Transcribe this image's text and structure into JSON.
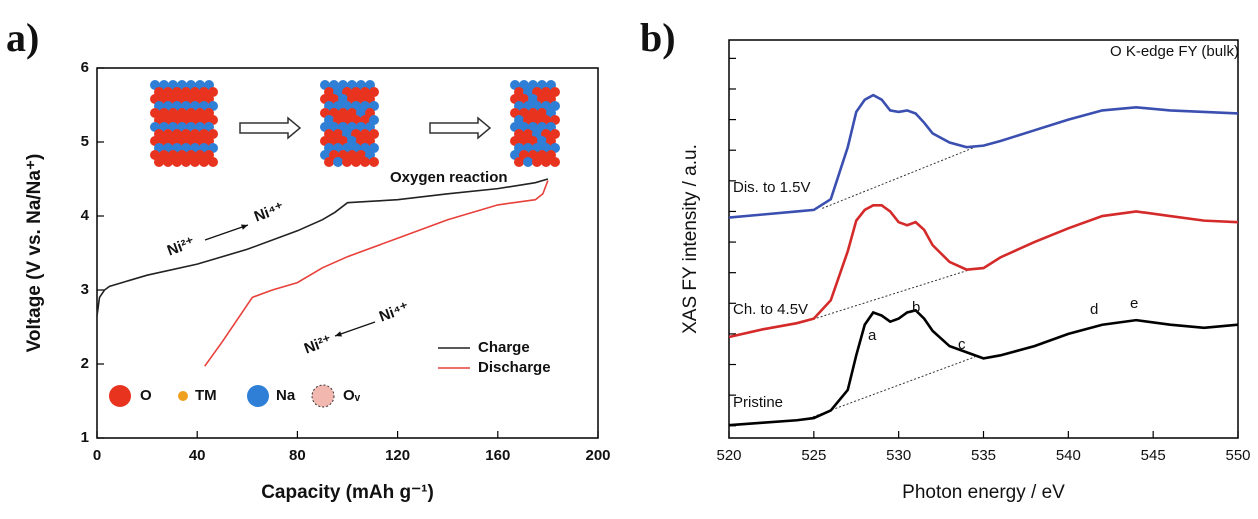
{
  "chart_data": [
    {
      "type": "line",
      "panel_label": "a)",
      "xlabel": "Capacity (mAh g⁻¹)",
      "ylabel": "Voltage (V vs. Na/Na⁺)",
      "xlim": [
        0,
        200
      ],
      "xticks": [
        0,
        40,
        80,
        120,
        160,
        200
      ],
      "ylim": [
        1,
        6
      ],
      "yticks": [
        1,
        2,
        3,
        4,
        5,
        6
      ],
      "legend": "lower right",
      "series": [
        {
          "name": "Charge",
          "color": "#222222",
          "x": [
            0,
            1,
            3,
            5,
            10,
            20,
            40,
            60,
            80,
            90,
            95,
            100,
            110,
            120,
            140,
            160,
            175,
            180
          ],
          "values": [
            2.65,
            2.9,
            3.0,
            3.05,
            3.1,
            3.2,
            3.35,
            3.55,
            3.8,
            3.95,
            4.05,
            4.18,
            4.2,
            4.22,
            4.3,
            4.37,
            4.45,
            4.5
          ]
        },
        {
          "name": "Discharge",
          "color": "#e8403a",
          "x": [
            43,
            50,
            55,
            60,
            62,
            70,
            80,
            90,
            100,
            120,
            140,
            160,
            175,
            178,
            180
          ],
          "values": [
            1.97,
            2.3,
            2.55,
            2.8,
            2.9,
            3.0,
            3.1,
            3.3,
            3.45,
            3.7,
            3.95,
            4.15,
            4.22,
            4.3,
            4.48
          ]
        }
      ],
      "annotations": [
        "Oxygen reaction",
        "Ni²⁺",
        "Ni⁴⁺",
        "Ni²⁺",
        "Ni⁴⁺",
        "O",
        "TM",
        "Na",
        "Oᵥ"
      ]
    },
    {
      "type": "line",
      "panel_label": "b)",
      "xlabel": "Photon energy / eV",
      "ylabel": "XAS FY intensity / a.u.",
      "xlim": [
        520,
        550
      ],
      "xticks": [
        520,
        525,
        530,
        535,
        540,
        545,
        550
      ],
      "ylim": [
        0,
        13
      ],
      "yticks": [
        0.4,
        1.4,
        2.4,
        3.4,
        4.4,
        5.4,
        6.4,
        7.4,
        8.4,
        9.4,
        10.4,
        11.4,
        12.4
      ],
      "ytick_labels": false,
      "x": [
        520,
        522,
        524,
        525,
        526,
        527,
        527.5,
        528,
        528.5,
        529,
        529.5,
        530,
        530.5,
        531,
        531.5,
        532,
        533,
        534,
        535,
        536,
        538,
        540,
        542,
        544,
        546,
        548,
        550
      ],
      "series": [
        {
          "name": "Pristine",
          "color": "#000000",
          "values": [
            0.42,
            0.5,
            0.58,
            0.65,
            0.9,
            1.57,
            2.7,
            3.7,
            4.1,
            4.0,
            3.8,
            3.9,
            4.1,
            4.17,
            3.9,
            3.5,
            3.0,
            2.8,
            2.6,
            2.7,
            3.0,
            3.4,
            3.7,
            3.85,
            3.7,
            3.6,
            3.7
          ]
        },
        {
          "name": "Ch. to 4.5V",
          "color": "#d42a2a",
          "values": [
            3.3,
            3.55,
            3.75,
            3.9,
            4.5,
            6.1,
            7.1,
            7.45,
            7.6,
            7.6,
            7.4,
            7.05,
            6.95,
            7.05,
            6.8,
            6.3,
            5.75,
            5.5,
            5.55,
            5.9,
            6.4,
            6.85,
            7.25,
            7.4,
            7.25,
            7.1,
            7.05
          ]
        },
        {
          "name": "Dis. to 1.5V",
          "color": "#3a4fb0",
          "values": [
            7.2,
            7.3,
            7.4,
            7.45,
            7.8,
            9.5,
            10.65,
            11.05,
            11.2,
            11.05,
            10.7,
            10.65,
            10.7,
            10.6,
            10.3,
            9.95,
            9.65,
            9.5,
            9.55,
            9.7,
            10.05,
            10.4,
            10.7,
            10.8,
            10.7,
            10.65,
            10.6
          ]
        }
      ],
      "reference_lines": [
        {
          "x": [
            524.5,
            534.5
          ],
          "values": [
            0.6,
            2.65
          ]
        },
        {
          "x": [
            524.5,
            534.5
          ],
          "values": [
            3.8,
            5.55
          ]
        },
        {
          "x": [
            525.5,
            534.5
          ],
          "values": [
            7.5,
            9.5
          ]
        }
      ],
      "annotations": [
        "O K-edge  FY (bulk)",
        "a",
        "b",
        "c",
        "d",
        "e"
      ]
    }
  ]
}
